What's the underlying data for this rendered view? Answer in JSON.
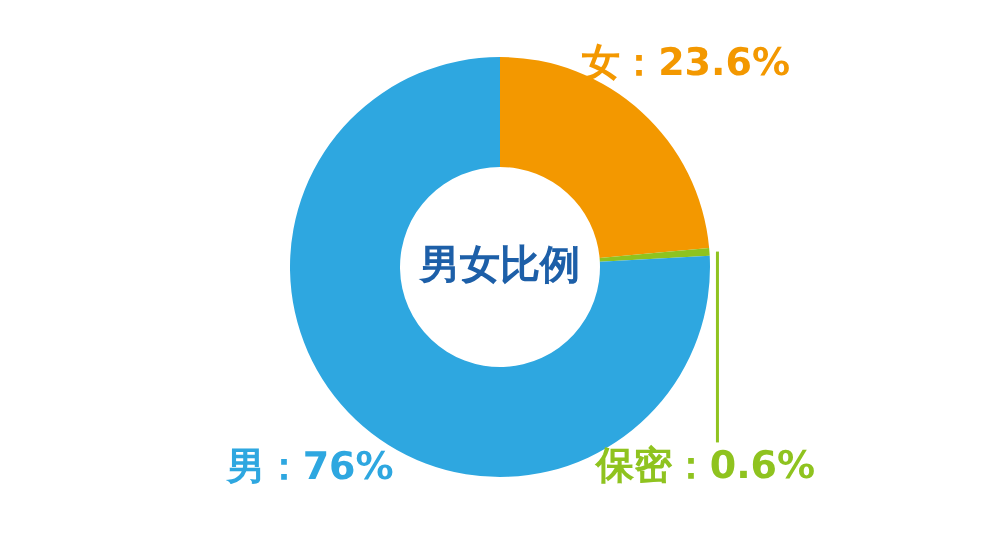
{
  "chart_data": {
    "type": "donut",
    "title": "男女比例",
    "categories": [
      "女",
      "保密",
      "男"
    ],
    "values": [
      23.6,
      0.6,
      76
    ],
    "colors": [
      "#f39800",
      "#8fc31f",
      "#2ea7e0"
    ],
    "value_labels": [
      "23.6%",
      "0.6%",
      "76%"
    ]
  }
}
